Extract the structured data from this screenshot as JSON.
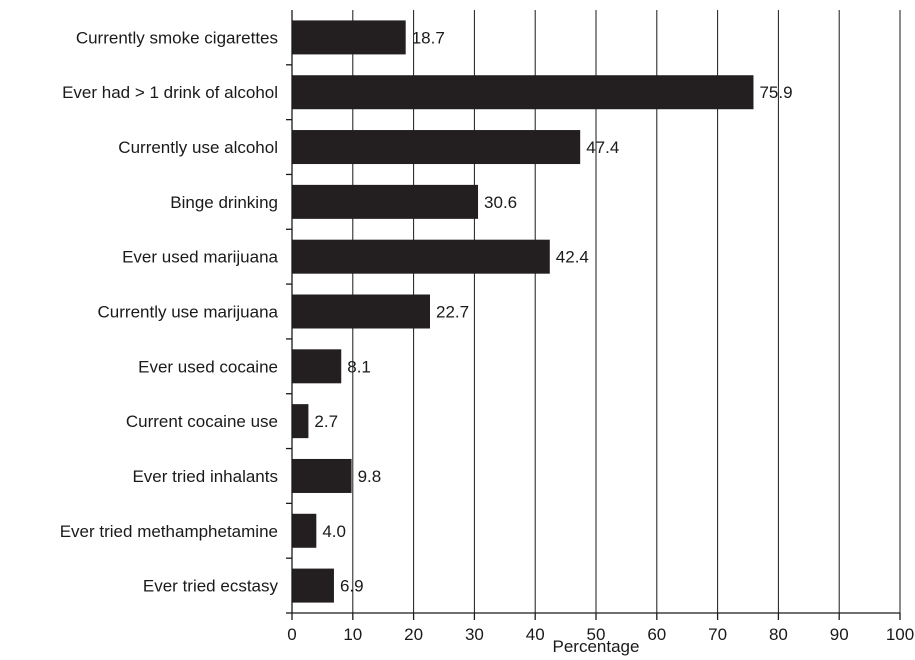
{
  "chart_data": {
    "type": "bar",
    "orientation": "horizontal",
    "categories": [
      "Currently smoke cigarettes",
      "Ever had > 1 drink of alcohol",
      "Currently use alcohol",
      "Binge drinking",
      "Ever used marijuana",
      "Currently use marijuana",
      "Ever used cocaine",
      "Current cocaine use",
      "Ever tried inhalants",
      "Ever tried methamphetamine",
      "Ever tried ecstasy"
    ],
    "values": [
      18.7,
      75.9,
      47.4,
      30.6,
      42.4,
      22.7,
      8.1,
      2.7,
      9.8,
      4.0,
      6.9
    ],
    "value_labels": [
      "18.7",
      "75.9",
      "47.4",
      "30.6",
      "42.4",
      "22.7",
      "8.1",
      "2.7",
      "9.8",
      "4.0",
      "6.9"
    ],
    "xlabel": "Percentage",
    "ylabel": "",
    "title": "",
    "xlim": [
      0,
      100
    ],
    "xticks": [
      0,
      10,
      20,
      30,
      40,
      50,
      60,
      70,
      80,
      90,
      100
    ],
    "xtick_labels": [
      "0",
      "10",
      "20",
      "30",
      "40",
      "50",
      "60",
      "70",
      "80",
      "90",
      "100"
    ],
    "grid": "vertical gridlines at each x tick",
    "legend": "none",
    "colors": {
      "bar": "#231f20",
      "text": "#1a1a1a",
      "grid": "#1a1a1a"
    }
  }
}
